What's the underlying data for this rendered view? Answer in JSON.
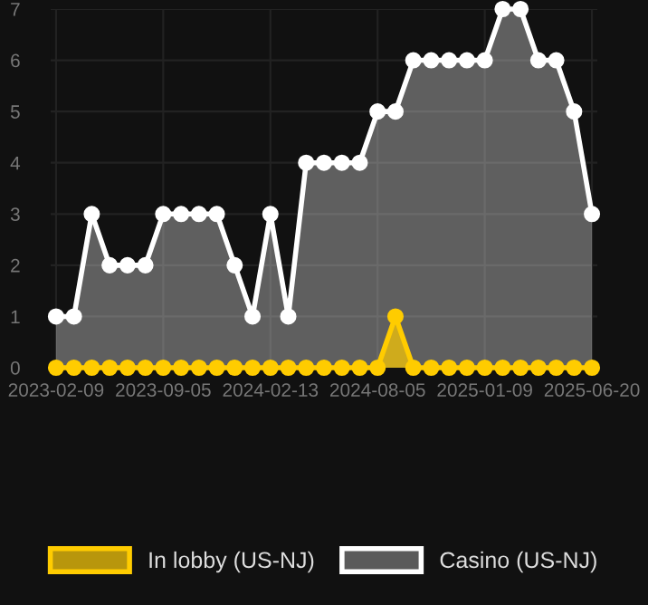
{
  "chart_data": {
    "type": "area",
    "categories": [
      "2023-02-09",
      null,
      null,
      null,
      null,
      null,
      "2023-09-05",
      null,
      null,
      null,
      null,
      null,
      "2024-02-13",
      null,
      null,
      null,
      null,
      null,
      "2024-08-05",
      null,
      null,
      null,
      null,
      null,
      "2025-01-09",
      null,
      null,
      null,
      null,
      null,
      "2025-06-20"
    ],
    "series": [
      {
        "name": "Casino (US-NJ)",
        "color": "#ffffff",
        "values": [
          1,
          1,
          3,
          2,
          2,
          2,
          3,
          3,
          3,
          3,
          2,
          1,
          3,
          1,
          4,
          4,
          4,
          4,
          5,
          5,
          6,
          6,
          6,
          6,
          6,
          7,
          7,
          6,
          6,
          5,
          3
        ]
      },
      {
        "name": "In lobby (US-NJ)",
        "color": "#ffcc00",
        "values": [
          0,
          0,
          0,
          0,
          0,
          0,
          0,
          0,
          0,
          0,
          0,
          0,
          0,
          0,
          0,
          0,
          0,
          0,
          0,
          1,
          0,
          0,
          0,
          0,
          0,
          0,
          0,
          0,
          0,
          0,
          0
        ]
      }
    ],
    "ylim": [
      0,
      7
    ],
    "yticks": [
      0,
      1,
      2,
      3,
      4,
      5,
      6,
      7
    ],
    "grid": true,
    "legend": "bottom",
    "marker": "circle",
    "line_style": "solid"
  }
}
